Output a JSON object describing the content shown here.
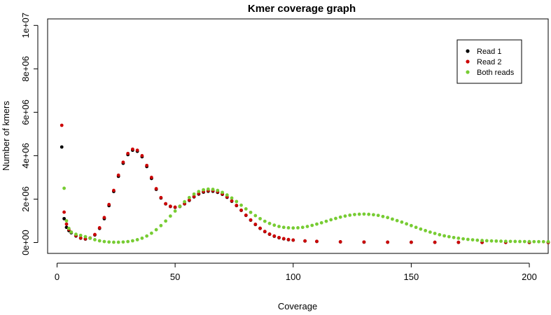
{
  "chart_data": {
    "type": "scatter",
    "title": "Kmer coverage graph",
    "xlabel": "Coverage",
    "ylabel": "Number of kmers",
    "xlim": [
      -4,
      208
    ],
    "ylim": [
      -500000,
      10300000
    ],
    "x_ticks": [
      0,
      50,
      100,
      150,
      200
    ],
    "x_tick_labels": [
      "0",
      "50",
      "100",
      "150",
      "200"
    ],
    "y_ticks": [
      0,
      2000000,
      4000000,
      6000000,
      8000000,
      10000000
    ],
    "y_tick_labels": [
      "0e+00",
      "2e+06",
      "4e+06",
      "6e+06",
      "8e+06",
      "1e+07"
    ],
    "legend_position": "top-right",
    "series": [
      {
        "name": "Read 1",
        "color": "#000000",
        "points": [
          [
            2,
            4400000
          ],
          [
            3,
            1100000
          ],
          [
            4,
            700000
          ],
          [
            5,
            550000
          ],
          [
            6,
            450000
          ],
          [
            8,
            300000
          ],
          [
            10,
            200000
          ],
          [
            12,
            160000
          ],
          [
            14,
            200000
          ],
          [
            16,
            350000
          ],
          [
            18,
            650000
          ],
          [
            20,
            1100000
          ],
          [
            22,
            1700000
          ],
          [
            24,
            2350000
          ],
          [
            26,
            3050000
          ],
          [
            28,
            3650000
          ],
          [
            30,
            4050000
          ],
          [
            32,
            4250000
          ],
          [
            34,
            4200000
          ],
          [
            36,
            3950000
          ],
          [
            38,
            3500000
          ],
          [
            40,
            2950000
          ],
          [
            42,
            2450000
          ],
          [
            44,
            2050000
          ],
          [
            46,
            1780000
          ],
          [
            48,
            1660000
          ],
          [
            50,
            1620000
          ],
          [
            52,
            1660000
          ],
          [
            54,
            1780000
          ],
          [
            56,
            1940000
          ],
          [
            58,
            2100000
          ],
          [
            60,
            2230000
          ],
          [
            62,
            2320000
          ],
          [
            64,
            2360000
          ],
          [
            66,
            2360000
          ],
          [
            68,
            2310000
          ],
          [
            70,
            2220000
          ],
          [
            72,
            2080000
          ],
          [
            74,
            1900000
          ],
          [
            76,
            1700000
          ],
          [
            78,
            1480000
          ],
          [
            80,
            1250000
          ],
          [
            82,
            1030000
          ],
          [
            84,
            830000
          ],
          [
            86,
            650000
          ],
          [
            88,
            500000
          ],
          [
            90,
            380000
          ],
          [
            92,
            290000
          ],
          [
            94,
            220000
          ],
          [
            96,
            170000
          ],
          [
            98,
            130000
          ],
          [
            100,
            110000
          ],
          [
            105,
            70000
          ],
          [
            110,
            50000
          ],
          [
            120,
            30000
          ],
          [
            130,
            20000
          ],
          [
            140,
            15000
          ],
          [
            150,
            12000
          ],
          [
            160,
            10000
          ],
          [
            170,
            8000
          ],
          [
            180,
            6000
          ],
          [
            190,
            5000
          ],
          [
            200,
            4000
          ],
          [
            208,
            3000
          ]
        ]
      },
      {
        "name": "Read 2",
        "color": "#cc0000",
        "points": [
          [
            2,
            5400000
          ],
          [
            3,
            1400000
          ],
          [
            4,
            850000
          ],
          [
            5,
            600000
          ],
          [
            6,
            480000
          ],
          [
            8,
            320000
          ],
          [
            10,
            210000
          ],
          [
            12,
            170000
          ],
          [
            14,
            210000
          ],
          [
            16,
            370000
          ],
          [
            18,
            680000
          ],
          [
            20,
            1150000
          ],
          [
            22,
            1750000
          ],
          [
            24,
            2400000
          ],
          [
            26,
            3100000
          ],
          [
            28,
            3700000
          ],
          [
            30,
            4100000
          ],
          [
            32,
            4300000
          ],
          [
            34,
            4250000
          ],
          [
            36,
            4000000
          ],
          [
            38,
            3550000
          ],
          [
            40,
            3000000
          ],
          [
            42,
            2480000
          ],
          [
            44,
            2070000
          ],
          [
            46,
            1790000
          ],
          [
            48,
            1670000
          ],
          [
            50,
            1630000
          ],
          [
            52,
            1670000
          ],
          [
            54,
            1790000
          ],
          [
            56,
            1960000
          ],
          [
            58,
            2120000
          ],
          [
            60,
            2260000
          ],
          [
            62,
            2350000
          ],
          [
            64,
            2390000
          ],
          [
            66,
            2390000
          ],
          [
            68,
            2340000
          ],
          [
            70,
            2240000
          ],
          [
            72,
            2100000
          ],
          [
            74,
            1920000
          ],
          [
            76,
            1710000
          ],
          [
            78,
            1490000
          ],
          [
            80,
            1260000
          ],
          [
            82,
            1040000
          ],
          [
            84,
            840000
          ],
          [
            86,
            660000
          ],
          [
            88,
            510000
          ],
          [
            90,
            390000
          ],
          [
            92,
            300000
          ],
          [
            94,
            230000
          ],
          [
            96,
            180000
          ],
          [
            98,
            140000
          ],
          [
            100,
            115000
          ],
          [
            105,
            75000
          ],
          [
            110,
            55000
          ],
          [
            120,
            35000
          ],
          [
            130,
            25000
          ],
          [
            140,
            18000
          ],
          [
            150,
            14000
          ],
          [
            160,
            11000
          ],
          [
            170,
            9000
          ],
          [
            180,
            7000
          ],
          [
            190,
            6000
          ],
          [
            200,
            5000
          ],
          [
            208,
            4000
          ]
        ]
      },
      {
        "name": "Both reads",
        "color": "#77cc33",
        "points": [
          [
            3,
            2500000
          ],
          [
            4,
            1000000
          ],
          [
            5,
            650000
          ],
          [
            6,
            480000
          ],
          [
            8,
            380000
          ],
          [
            10,
            330000
          ],
          [
            12,
            270000
          ],
          [
            14,
            200000
          ],
          [
            16,
            130000
          ],
          [
            18,
            80000
          ],
          [
            20,
            45000
          ],
          [
            22,
            25000
          ],
          [
            24,
            15000
          ],
          [
            26,
            15000
          ],
          [
            28,
            25000
          ],
          [
            30,
            45000
          ],
          [
            32,
            80000
          ],
          [
            34,
            130000
          ],
          [
            36,
            200000
          ],
          [
            38,
            300000
          ],
          [
            40,
            430000
          ],
          [
            42,
            590000
          ],
          [
            44,
            780000
          ],
          [
            46,
            990000
          ],
          [
            48,
            1220000
          ],
          [
            50,
            1450000
          ],
          [
            52,
            1670000
          ],
          [
            54,
            1880000
          ],
          [
            56,
            2070000
          ],
          [
            58,
            2230000
          ],
          [
            60,
            2350000
          ],
          [
            62,
            2430000
          ],
          [
            64,
            2460000
          ],
          [
            66,
            2450000
          ],
          [
            68,
            2400000
          ],
          [
            70,
            2310000
          ],
          [
            72,
            2190000
          ],
          [
            74,
            2050000
          ],
          [
            76,
            1890000
          ],
          [
            78,
            1720000
          ],
          [
            80,
            1550000
          ],
          [
            82,
            1390000
          ],
          [
            84,
            1240000
          ],
          [
            86,
            1100000
          ],
          [
            88,
            980000
          ],
          [
            90,
            880000
          ],
          [
            92,
            800000
          ],
          [
            94,
            740000
          ],
          [
            96,
            700000
          ],
          [
            98,
            680000
          ],
          [
            100,
            670000
          ],
          [
            102,
            680000
          ],
          [
            104,
            700000
          ],
          [
            106,
            740000
          ],
          [
            108,
            790000
          ],
          [
            110,
            850000
          ],
          [
            112,
            910000
          ],
          [
            114,
            980000
          ],
          [
            116,
            1050000
          ],
          [
            118,
            1110000
          ],
          [
            120,
            1170000
          ],
          [
            122,
            1220000
          ],
          [
            124,
            1260000
          ],
          [
            126,
            1290000
          ],
          [
            128,
            1305000
          ],
          [
            130,
            1310000
          ],
          [
            132,
            1300000
          ],
          [
            134,
            1280000
          ],
          [
            136,
            1250000
          ],
          [
            138,
            1200000
          ],
          [
            140,
            1150000
          ],
          [
            142,
            1080000
          ],
          [
            144,
            1010000
          ],
          [
            146,
            940000
          ],
          [
            148,
            860000
          ],
          [
            150,
            780000
          ],
          [
            152,
            700000
          ],
          [
            154,
            620000
          ],
          [
            156,
            550000
          ],
          [
            158,
            480000
          ],
          [
            160,
            420000
          ],
          [
            162,
            360000
          ],
          [
            164,
            310000
          ],
          [
            166,
            270000
          ],
          [
            168,
            230000
          ],
          [
            170,
            200000
          ],
          [
            172,
            170000
          ],
          [
            174,
            145000
          ],
          [
            176,
            125000
          ],
          [
            178,
            108000
          ],
          [
            180,
            95000
          ],
          [
            182,
            84000
          ],
          [
            184,
            75000
          ],
          [
            186,
            68000
          ],
          [
            188,
            62000
          ],
          [
            190,
            57000
          ],
          [
            192,
            53000
          ],
          [
            194,
            50000
          ],
          [
            196,
            47000
          ],
          [
            198,
            45000
          ],
          [
            200,
            43000
          ],
          [
            202,
            41000
          ],
          [
            204,
            40000
          ],
          [
            206,
            39000
          ],
          [
            208,
            38000
          ]
        ]
      }
    ]
  }
}
